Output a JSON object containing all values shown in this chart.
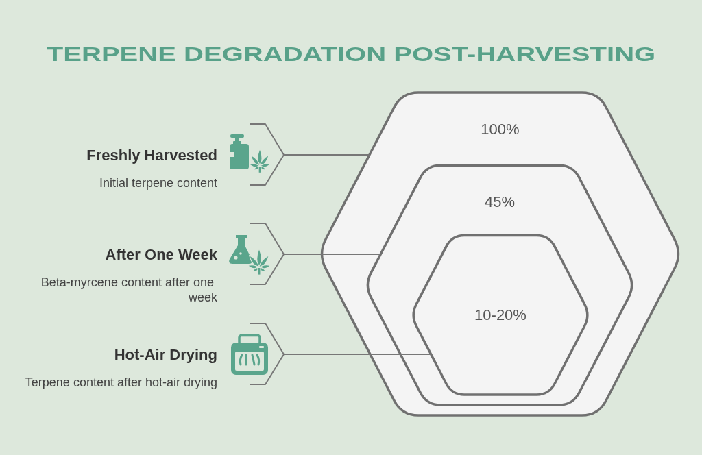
{
  "chart_data": {
    "type": "other",
    "title": "TERPENE DEGRADATION POST-HARVESTING",
    "categories": [
      "Freshly Harvested",
      "After One Week",
      "Hot-Air Drying"
    ],
    "values": [
      100,
      45,
      null
    ],
    "value_labels": [
      "100%",
      "45%",
      "10-20%"
    ],
    "annotations": [
      "Initial terpene content",
      "Beta-myrcene content after one week",
      "Terpene content after hot-air drying"
    ],
    "color": "#f4f4f4"
  }
}
